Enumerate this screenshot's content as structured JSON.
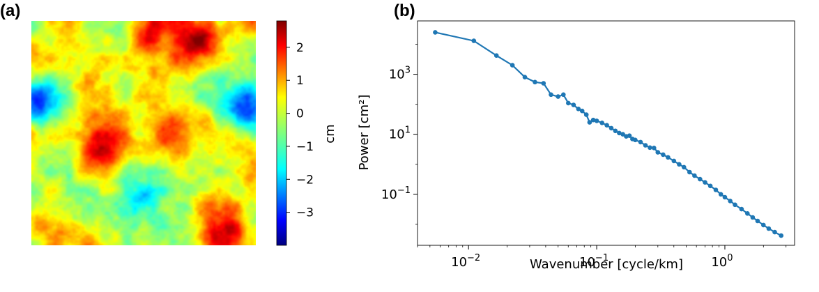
{
  "panels": {
    "a_label": "(a)",
    "b_label": "(b)"
  },
  "colorbar": {
    "unit_label": "cm",
    "colormap": "jet",
    "range": [
      -4.0,
      2.8
    ],
    "ticks": [
      {
        "v": 2,
        "t": "2"
      },
      {
        "v": 1,
        "t": "1"
      },
      {
        "v": 0,
        "t": "0"
      },
      {
        "v": -1,
        "t": "−1"
      },
      {
        "v": -2,
        "t": "−2"
      },
      {
        "v": -3,
        "t": "−3"
      }
    ]
  },
  "chart_data": [
    {
      "type": "heatmap",
      "panel": "(a)",
      "description_of_field": "random fractal displacement field",
      "colorbar_label": "cm",
      "value_range": [
        -4.0,
        2.8
      ],
      "hotspots": [
        {
          "cx": 0.3,
          "cy": 0.6,
          "v": 2.0
        },
        {
          "cx": 0.55,
          "cy": 0.02,
          "v": 2.2
        },
        {
          "cx": 0.75,
          "cy": 0.05,
          "v": 2.4
        },
        {
          "cx": 0.6,
          "cy": 0.5,
          "v": 1.8
        },
        {
          "cx": 0.85,
          "cy": 0.95,
          "v": 1.6
        },
        {
          "cx": 0.05,
          "cy": 0.9,
          "v": 1.3
        },
        {
          "cx": 0.05,
          "cy": 0.35,
          "v": -3.2
        },
        {
          "cx": 0.97,
          "cy": 0.37,
          "v": -3.4
        },
        {
          "cx": 0.5,
          "cy": 0.8,
          "v": -1.3
        },
        {
          "cx": 0.35,
          "cy": 0.15,
          "v": -1.0
        }
      ]
    },
    {
      "type": "line",
      "panel": "(b)",
      "xlabel": "Wavenumber [cycle/km]",
      "ylabel": "Power [cm²]",
      "xscale": "log",
      "yscale": "log",
      "xlim": [
        0.004,
        3.5
      ],
      "ylim": [
        0.002,
        60000
      ],
      "xticks": [
        {
          "v": 0.01,
          "base": "10",
          "exp": "−2"
        },
        {
          "v": 0.1,
          "base": "10",
          "exp": "−1"
        },
        {
          "v": 1,
          "base": "10",
          "exp": "0"
        }
      ],
      "yticks": [
        {
          "v": 1000,
          "base": "10",
          "exp": "3"
        },
        {
          "v": 10,
          "base": "10",
          "exp": "1"
        },
        {
          "v": 0.1,
          "base": "10",
          "exp": "−1"
        }
      ],
      "color": "#1f77b4",
      "series": [
        {
          "points": [
            [
              0.0055,
              25000
            ],
            [
              0.011,
              13000
            ],
            [
              0.0165,
              4200
            ],
            [
              0.022,
              2000
            ],
            [
              0.0275,
              800
            ],
            [
              0.033,
              550
            ],
            [
              0.0385,
              500
            ],
            [
              0.044,
              210
            ],
            [
              0.05,
              180
            ],
            [
              0.055,
              210
            ],
            [
              0.06,
              110
            ],
            [
              0.066,
              95
            ],
            [
              0.072,
              70
            ],
            [
              0.077,
              60
            ],
            [
              0.083,
              45
            ],
            [
              0.088,
              25
            ],
            [
              0.094,
              30
            ],
            [
              0.1,
              28
            ],
            [
              0.11,
              24
            ],
            [
              0.12,
              20
            ],
            [
              0.13,
              16
            ],
            [
              0.14,
              13
            ],
            [
              0.15,
              11
            ],
            [
              0.16,
              10
            ],
            [
              0.17,
              8.5
            ],
            [
              0.18,
              9
            ],
            [
              0.19,
              7
            ],
            [
              0.2,
              6.5
            ],
            [
              0.22,
              5.5
            ],
            [
              0.24,
              4.3
            ],
            [
              0.26,
              3.6
            ],
            [
              0.28,
              3.5
            ],
            [
              0.3,
              2.5
            ],
            [
              0.33,
              2.1
            ],
            [
              0.36,
              1.7
            ],
            [
              0.4,
              1.3
            ],
            [
              0.44,
              1.0
            ],
            [
              0.48,
              0.8
            ],
            [
              0.53,
              0.55
            ],
            [
              0.58,
              0.42
            ],
            [
              0.64,
              0.32
            ],
            [
              0.7,
              0.25
            ],
            [
              0.77,
              0.19
            ],
            [
              0.85,
              0.14
            ],
            [
              0.93,
              0.1
            ],
            [
              1.0,
              0.08
            ],
            [
              1.1,
              0.06
            ],
            [
              1.2,
              0.045
            ],
            [
              1.35,
              0.032
            ],
            [
              1.5,
              0.023
            ],
            [
              1.65,
              0.017
            ],
            [
              1.8,
              0.013
            ],
            [
              2.0,
              0.0095
            ],
            [
              2.2,
              0.0072
            ],
            [
              2.45,
              0.0055
            ],
            [
              2.75,
              0.0042
            ]
          ]
        }
      ]
    }
  ]
}
